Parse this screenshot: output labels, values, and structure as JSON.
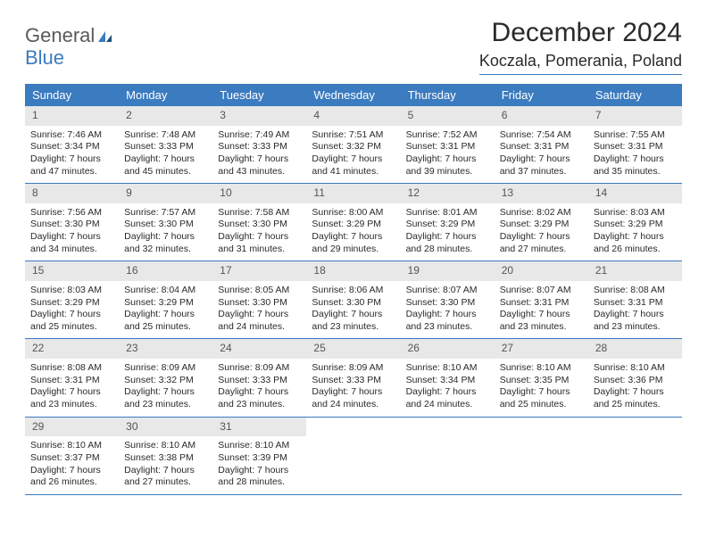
{
  "logo": {
    "line1": "General",
    "line2": "Blue"
  },
  "title": "December 2024",
  "location": "Koczala, Pomerania, Poland",
  "colors": {
    "header_bg": "#3b7bbf",
    "header_text": "#ffffff",
    "daynum_bg": "#e8e8e8",
    "text": "#2a2a2a",
    "rule": "#3b7bbf"
  },
  "day_labels": [
    "Sunday",
    "Monday",
    "Tuesday",
    "Wednesday",
    "Thursday",
    "Friday",
    "Saturday"
  ],
  "weeks": [
    [
      {
        "num": "1",
        "sunrise": "7:46 AM",
        "sunset": "3:34 PM",
        "daylight": "7 hours and 47 minutes."
      },
      {
        "num": "2",
        "sunrise": "7:48 AM",
        "sunset": "3:33 PM",
        "daylight": "7 hours and 45 minutes."
      },
      {
        "num": "3",
        "sunrise": "7:49 AM",
        "sunset": "3:33 PM",
        "daylight": "7 hours and 43 minutes."
      },
      {
        "num": "4",
        "sunrise": "7:51 AM",
        "sunset": "3:32 PM",
        "daylight": "7 hours and 41 minutes."
      },
      {
        "num": "5",
        "sunrise": "7:52 AM",
        "sunset": "3:31 PM",
        "daylight": "7 hours and 39 minutes."
      },
      {
        "num": "6",
        "sunrise": "7:54 AM",
        "sunset": "3:31 PM",
        "daylight": "7 hours and 37 minutes."
      },
      {
        "num": "7",
        "sunrise": "7:55 AM",
        "sunset": "3:31 PM",
        "daylight": "7 hours and 35 minutes."
      }
    ],
    [
      {
        "num": "8",
        "sunrise": "7:56 AM",
        "sunset": "3:30 PM",
        "daylight": "7 hours and 34 minutes."
      },
      {
        "num": "9",
        "sunrise": "7:57 AM",
        "sunset": "3:30 PM",
        "daylight": "7 hours and 32 minutes."
      },
      {
        "num": "10",
        "sunrise": "7:58 AM",
        "sunset": "3:30 PM",
        "daylight": "7 hours and 31 minutes."
      },
      {
        "num": "11",
        "sunrise": "8:00 AM",
        "sunset": "3:29 PM",
        "daylight": "7 hours and 29 minutes."
      },
      {
        "num": "12",
        "sunrise": "8:01 AM",
        "sunset": "3:29 PM",
        "daylight": "7 hours and 28 minutes."
      },
      {
        "num": "13",
        "sunrise": "8:02 AM",
        "sunset": "3:29 PM",
        "daylight": "7 hours and 27 minutes."
      },
      {
        "num": "14",
        "sunrise": "8:03 AM",
        "sunset": "3:29 PM",
        "daylight": "7 hours and 26 minutes."
      }
    ],
    [
      {
        "num": "15",
        "sunrise": "8:03 AM",
        "sunset": "3:29 PM",
        "daylight": "7 hours and 25 minutes."
      },
      {
        "num": "16",
        "sunrise": "8:04 AM",
        "sunset": "3:29 PM",
        "daylight": "7 hours and 25 minutes."
      },
      {
        "num": "17",
        "sunrise": "8:05 AM",
        "sunset": "3:30 PM",
        "daylight": "7 hours and 24 minutes."
      },
      {
        "num": "18",
        "sunrise": "8:06 AM",
        "sunset": "3:30 PM",
        "daylight": "7 hours and 23 minutes."
      },
      {
        "num": "19",
        "sunrise": "8:07 AM",
        "sunset": "3:30 PM",
        "daylight": "7 hours and 23 minutes."
      },
      {
        "num": "20",
        "sunrise": "8:07 AM",
        "sunset": "3:31 PM",
        "daylight": "7 hours and 23 minutes."
      },
      {
        "num": "21",
        "sunrise": "8:08 AM",
        "sunset": "3:31 PM",
        "daylight": "7 hours and 23 minutes."
      }
    ],
    [
      {
        "num": "22",
        "sunrise": "8:08 AM",
        "sunset": "3:31 PM",
        "daylight": "7 hours and 23 minutes."
      },
      {
        "num": "23",
        "sunrise": "8:09 AM",
        "sunset": "3:32 PM",
        "daylight": "7 hours and 23 minutes."
      },
      {
        "num": "24",
        "sunrise": "8:09 AM",
        "sunset": "3:33 PM",
        "daylight": "7 hours and 23 minutes."
      },
      {
        "num": "25",
        "sunrise": "8:09 AM",
        "sunset": "3:33 PM",
        "daylight": "7 hours and 24 minutes."
      },
      {
        "num": "26",
        "sunrise": "8:10 AM",
        "sunset": "3:34 PM",
        "daylight": "7 hours and 24 minutes."
      },
      {
        "num": "27",
        "sunrise": "8:10 AM",
        "sunset": "3:35 PM",
        "daylight": "7 hours and 25 minutes."
      },
      {
        "num": "28",
        "sunrise": "8:10 AM",
        "sunset": "3:36 PM",
        "daylight": "7 hours and 25 minutes."
      }
    ],
    [
      {
        "num": "29",
        "sunrise": "8:10 AM",
        "sunset": "3:37 PM",
        "daylight": "7 hours and 26 minutes."
      },
      {
        "num": "30",
        "sunrise": "8:10 AM",
        "sunset": "3:38 PM",
        "daylight": "7 hours and 27 minutes."
      },
      {
        "num": "31",
        "sunrise": "8:10 AM",
        "sunset": "3:39 PM",
        "daylight": "7 hours and 28 minutes."
      },
      null,
      null,
      null,
      null
    ]
  ],
  "labels": {
    "sunrise": "Sunrise:",
    "sunset": "Sunset:",
    "daylight": "Daylight:"
  }
}
